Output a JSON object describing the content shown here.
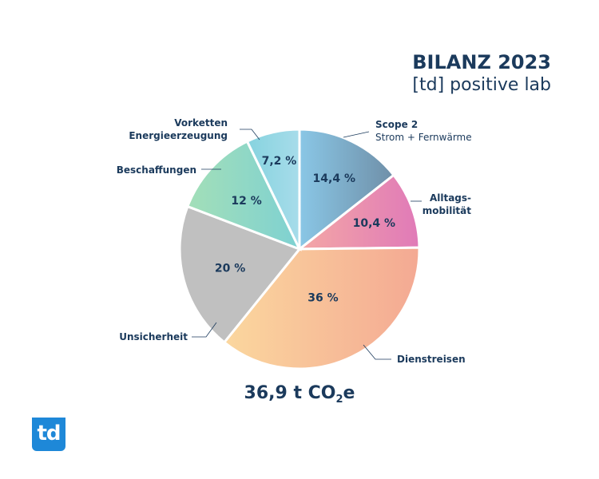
{
  "header": {
    "title": "BILANZ 2023",
    "subtitle": "[td] positive lab"
  },
  "total": {
    "value": "36,9 t CO",
    "subscript": "2",
    "suffix": "e"
  },
  "logo": {
    "text": "td"
  },
  "chart_data": {
    "type": "pie",
    "slices": [
      {
        "label": "Scope 2",
        "sublabel": "Strom + Fernwärme",
        "value": 14.4,
        "display": "14,4 %",
        "colors": [
          "#8ac7e6",
          "#6f8fa8"
        ]
      },
      {
        "label": "Alltags-",
        "label2": "mobilität",
        "value": 10.4,
        "display": "10,4 %",
        "colors": [
          "#f4a7a5",
          "#e07ab8"
        ]
      },
      {
        "label": "Dienstreisen",
        "value": 36,
        "display": "36 %",
        "colors": [
          "#fbd79e",
          "#f4a993"
        ]
      },
      {
        "label": "Unsicherheit",
        "value": 20,
        "display": "20 %",
        "colors": [
          "#c0c0c0",
          "#c0c0c0"
        ]
      },
      {
        "label": "Beschaffungen",
        "value": 12,
        "display": "12 %",
        "colors": [
          "#a3dfb8",
          "#7ed1d2"
        ]
      },
      {
        "label": "Vorketten",
        "label2": "Energieerzeugung",
        "value": 7.2,
        "display": "7,2 %",
        "colors": [
          "#86d3df",
          "#a7dcea"
        ]
      }
    ]
  }
}
